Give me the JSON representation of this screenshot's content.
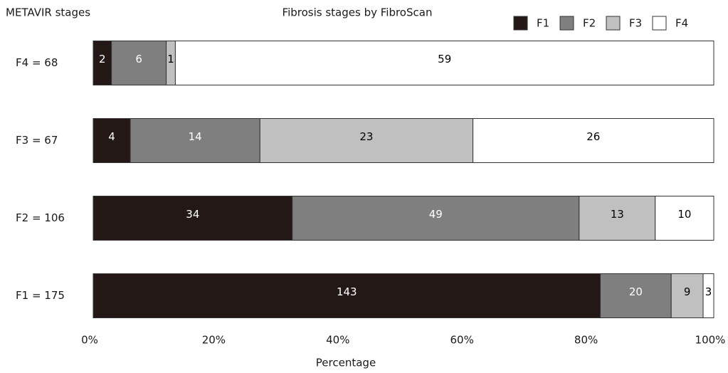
{
  "chart_data": {
    "type": "bar",
    "orientation": "horizontal",
    "stacked": "percent",
    "title": "Fibrosis stages by FibroScan",
    "y_label": "METAVIR stages",
    "x_label": "Percentage",
    "categories": [
      "F4 = 68",
      "F3 = 67",
      "F2 = 106",
      "F1 = 175"
    ],
    "series": [
      {
        "name": "F1",
        "color": "#231816",
        "label_color": "#ffffff",
        "values": [
          2,
          4,
          34,
          143
        ]
      },
      {
        "name": "F2",
        "color": "#7f7f7f",
        "label_color": "#ffffff",
        "values": [
          6,
          14,
          49,
          20
        ]
      },
      {
        "name": "F3",
        "color": "#c0c0c0",
        "label_color": "#000000",
        "values": [
          1,
          23,
          13,
          9
        ]
      },
      {
        "name": "F4",
        "color": "#ffffff",
        "label_color": "#000000",
        "values": [
          59,
          26,
          10,
          3
        ]
      }
    ],
    "xlim": [
      0,
      100
    ],
    "xticks": [
      {
        "value": 0,
        "label": "0%"
      },
      {
        "value": 20,
        "label": "20%"
      },
      {
        "value": 40,
        "label": "40%"
      },
      {
        "value": 60,
        "label": "60%"
      },
      {
        "value": 80,
        "label": "80%"
      },
      {
        "value": 100,
        "label": "100%"
      }
    ],
    "legend": "top-right"
  }
}
